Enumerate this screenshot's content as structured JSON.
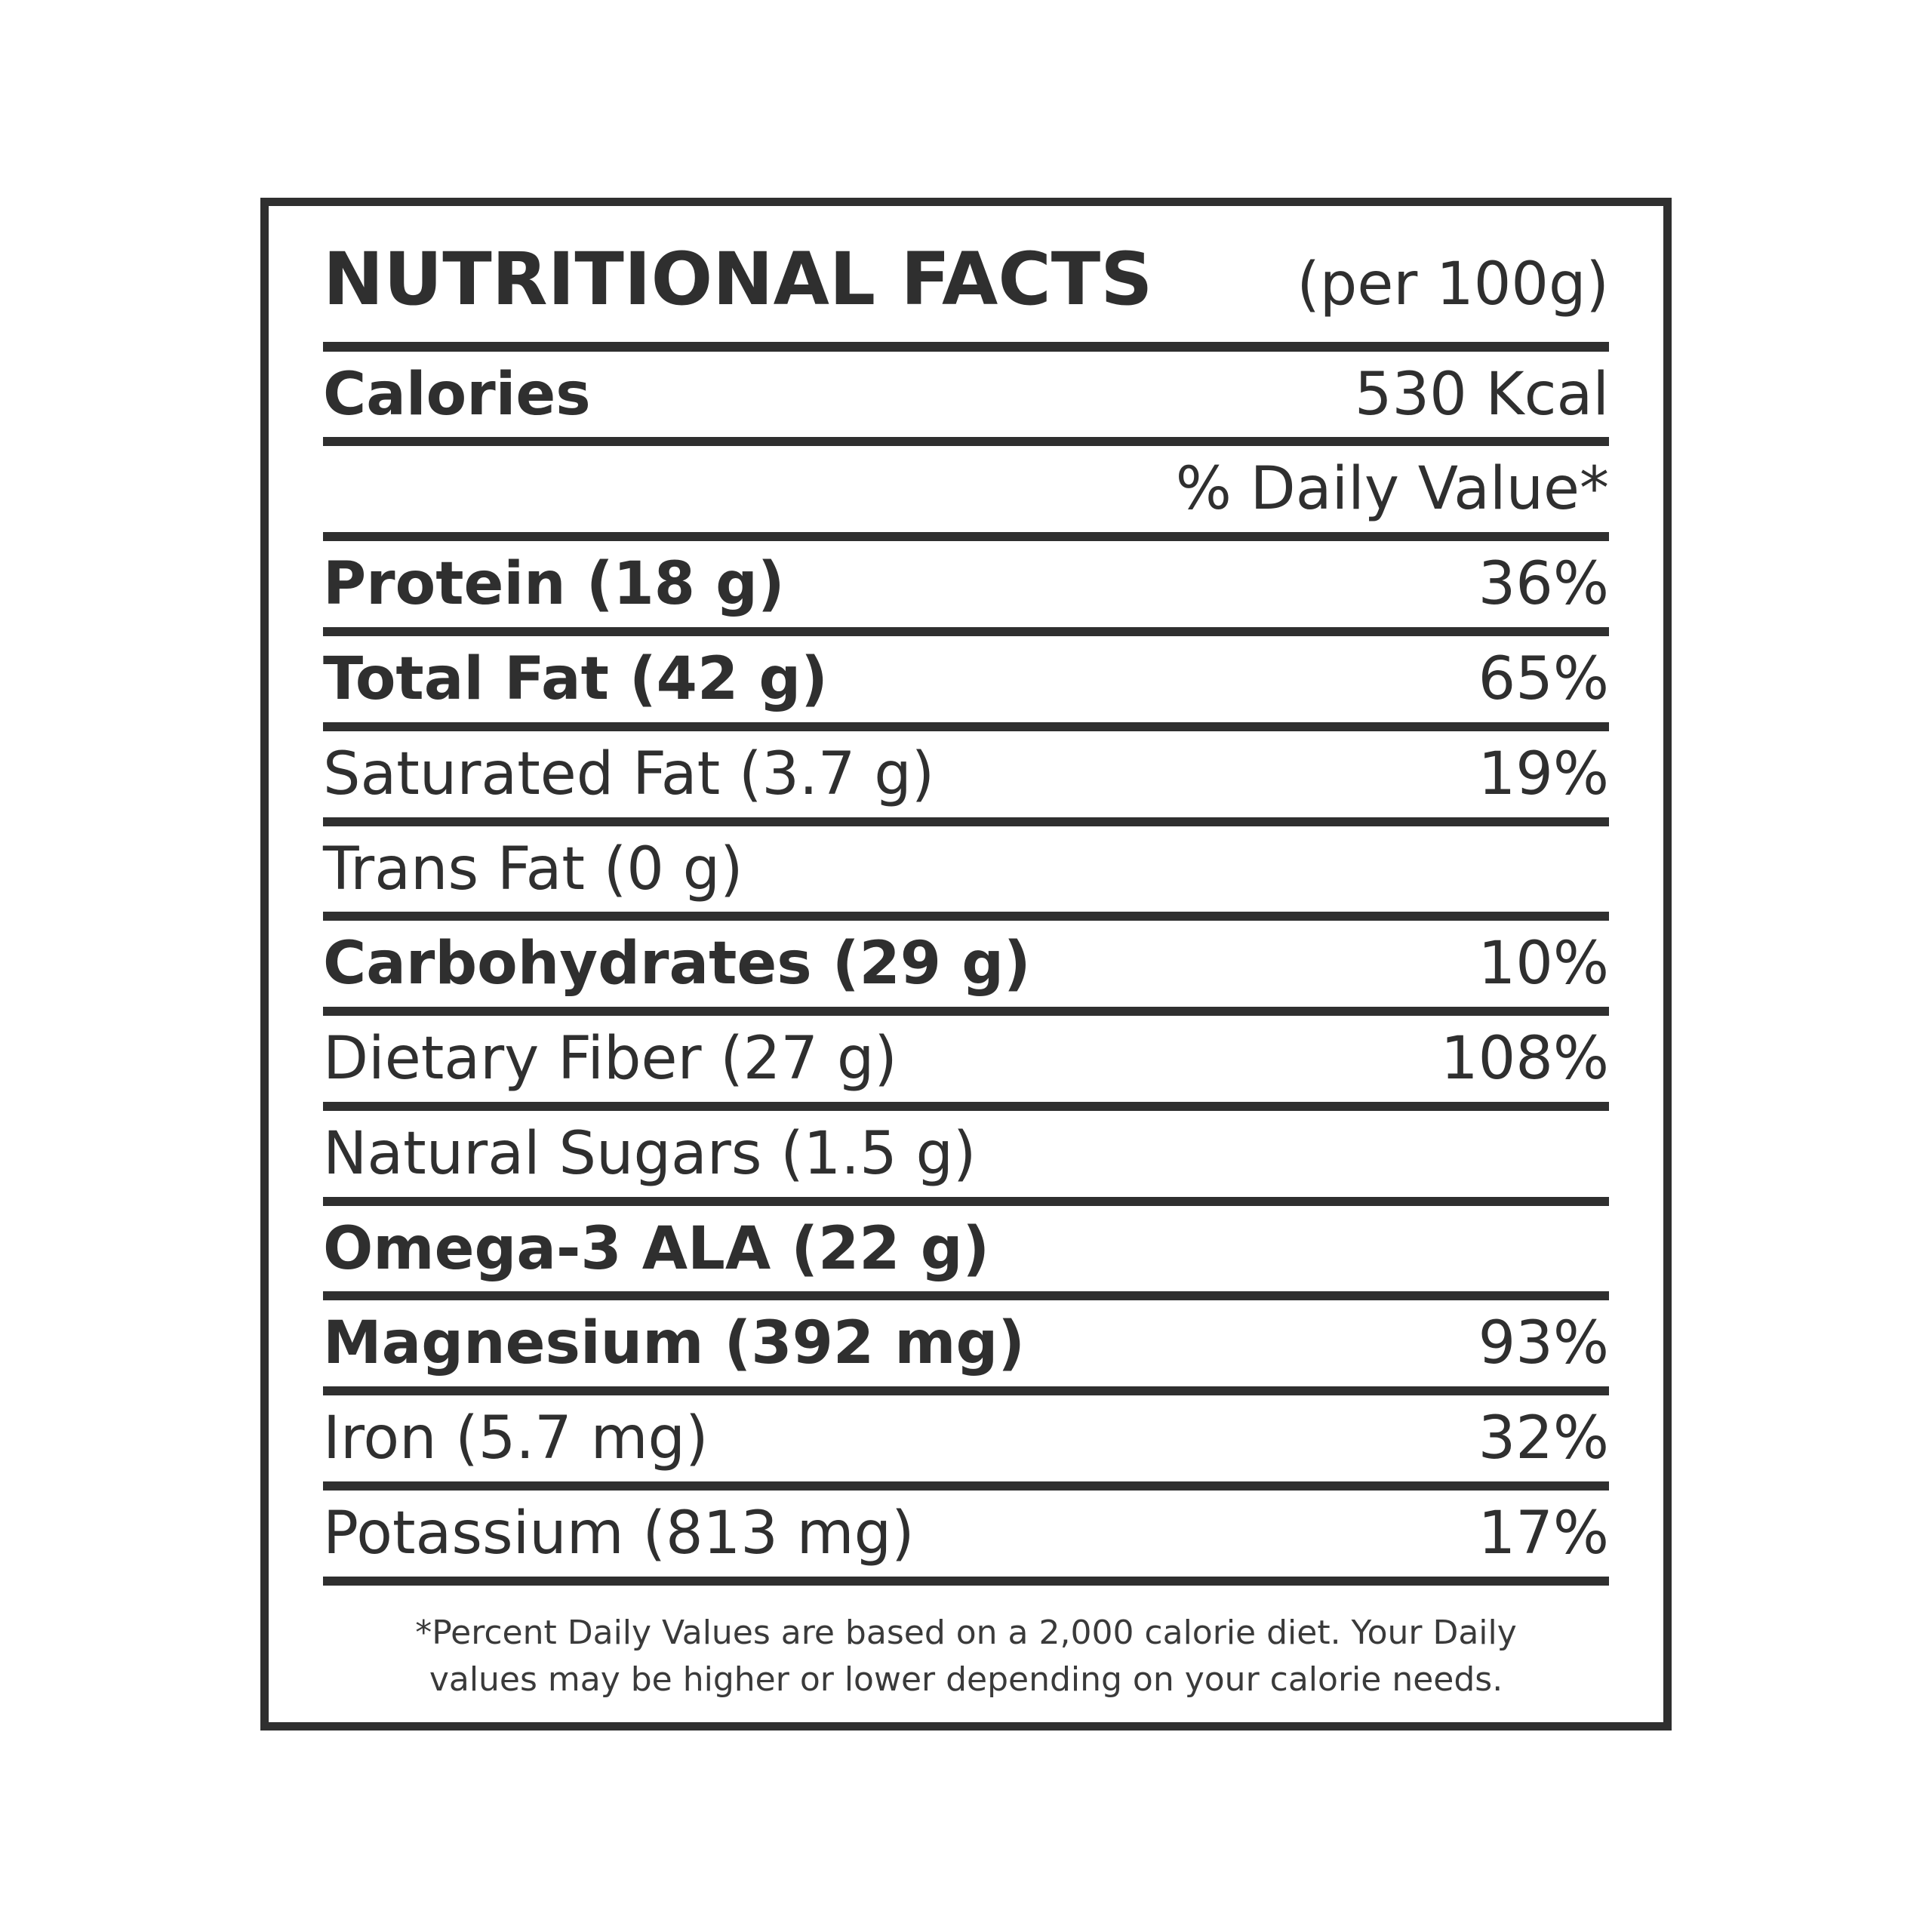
{
  "label": {
    "title": "NUTRITIONAL FACTS",
    "serving_note": "(per 100g)",
    "calories": {
      "name": "Calories",
      "value": "530 Kcal"
    },
    "daily_value_header": "% Daily Value*",
    "nutrients": [
      {
        "name": "Protein (18 g)",
        "daily_value": "36%",
        "bold": true
      },
      {
        "name": "Total Fat (42 g)",
        "daily_value": "65%",
        "bold": true
      },
      {
        "name": "Saturated Fat (3.7 g)",
        "daily_value": "19%",
        "bold": false
      },
      {
        "name": "Trans Fat (0 g)",
        "daily_value": "",
        "bold": false
      },
      {
        "name": "Carbohydrates (29 g)",
        "daily_value": "10%",
        "bold": true
      },
      {
        "name": "Dietary Fiber (27 g)",
        "daily_value": "108%",
        "bold": false
      },
      {
        "name": "Natural Sugars (1.5 g)",
        "daily_value": "",
        "bold": false
      },
      {
        "name": "Omega-3 ALA (22 g)",
        "daily_value": "",
        "bold": true
      },
      {
        "name": "Magnesium (392 mg)",
        "daily_value": "93%",
        "bold": true
      },
      {
        "name": "Iron (5.7 mg)",
        "daily_value": "32%",
        "bold": false
      },
      {
        "name": "Potassium (813 mg)",
        "daily_value": "17%",
        "bold": false
      }
    ],
    "footnote_line1": "*Percent Daily Values are based on a 2,000 calorie diet. Your Daily",
    "footnote_line2": "values may be higher or lower depending on your calorie needs.",
    "colors": {
      "ink": "#2f2f2f",
      "footnote_ink": "#3a3a3a",
      "background": "#ffffff"
    }
  }
}
